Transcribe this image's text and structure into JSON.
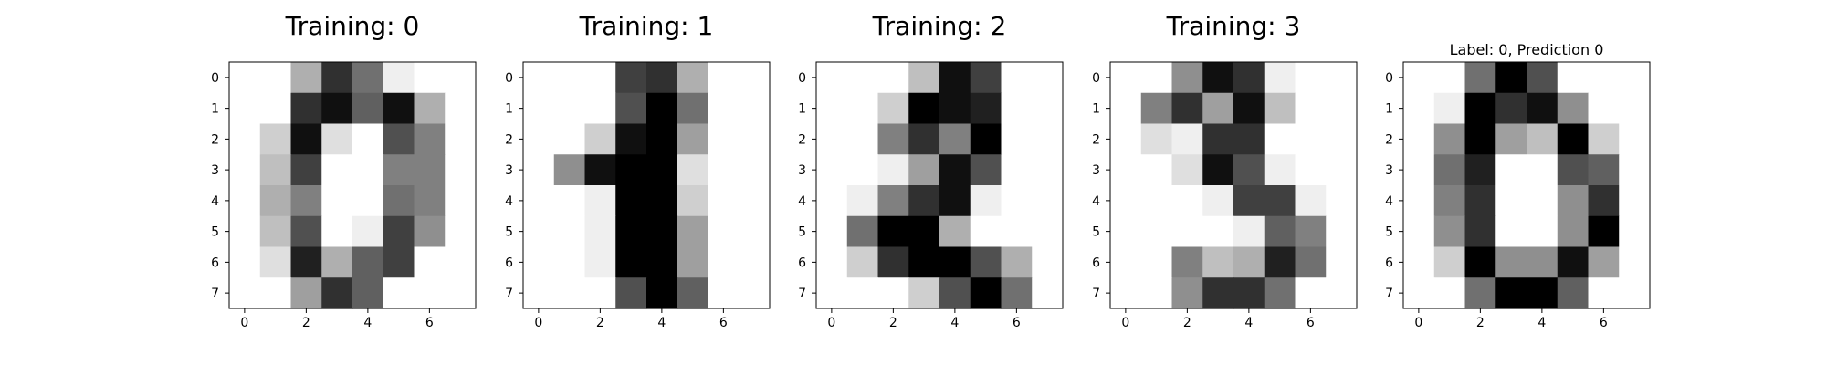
{
  "chart_data": [
    {
      "type": "heatmap",
      "title": "Training: 0",
      "title_size": "large",
      "colormap": "gray_r",
      "value_range": [
        0,
        16
      ],
      "x_ticks": [
        0,
        2,
        4,
        6
      ],
      "y_ticks": [
        0,
        1,
        2,
        3,
        4,
        5,
        6,
        7
      ],
      "values": [
        [
          0,
          0,
          5,
          13,
          9,
          1,
          0,
          0
        ],
        [
          0,
          0,
          13,
          15,
          10,
          15,
          5,
          0
        ],
        [
          0,
          3,
          15,
          2,
          0,
          11,
          8,
          0
        ],
        [
          0,
          4,
          12,
          0,
          0,
          8,
          8,
          0
        ],
        [
          0,
          5,
          8,
          0,
          0,
          9,
          8,
          0
        ],
        [
          0,
          4,
          11,
          0,
          1,
          12,
          7,
          0
        ],
        [
          0,
          2,
          14,
          5,
          10,
          12,
          0,
          0
        ],
        [
          0,
          0,
          6,
          13,
          10,
          0,
          0,
          0
        ]
      ]
    },
    {
      "type": "heatmap",
      "title": "Training: 1",
      "title_size": "large",
      "colormap": "gray_r",
      "value_range": [
        0,
        16
      ],
      "x_ticks": [
        0,
        2,
        4,
        6
      ],
      "y_ticks": [
        0,
        1,
        2,
        3,
        4,
        5,
        6,
        7
      ],
      "values": [
        [
          0,
          0,
          0,
          12,
          13,
          5,
          0,
          0
        ],
        [
          0,
          0,
          0,
          11,
          16,
          9,
          0,
          0
        ],
        [
          0,
          0,
          3,
          15,
          16,
          6,
          0,
          0
        ],
        [
          0,
          7,
          15,
          16,
          16,
          2,
          0,
          0
        ],
        [
          0,
          0,
          1,
          16,
          16,
          3,
          0,
          0
        ],
        [
          0,
          0,
          1,
          16,
          16,
          6,
          0,
          0
        ],
        [
          0,
          0,
          1,
          16,
          16,
          6,
          0,
          0
        ],
        [
          0,
          0,
          0,
          11,
          16,
          10,
          0,
          0
        ]
      ]
    },
    {
      "type": "heatmap",
      "title": "Training: 2",
      "title_size": "large",
      "colormap": "gray_r",
      "value_range": [
        0,
        16
      ],
      "x_ticks": [
        0,
        2,
        4,
        6
      ],
      "y_ticks": [
        0,
        1,
        2,
        3,
        4,
        5,
        6,
        7
      ],
      "values": [
        [
          0,
          0,
          0,
          4,
          15,
          12,
          0,
          0
        ],
        [
          0,
          0,
          3,
          16,
          15,
          14,
          0,
          0
        ],
        [
          0,
          0,
          8,
          13,
          8,
          16,
          0,
          0
        ],
        [
          0,
          0,
          1,
          6,
          15,
          11,
          0,
          0
        ],
        [
          0,
          1,
          8,
          13,
          15,
          1,
          0,
          0
        ],
        [
          0,
          9,
          16,
          16,
          5,
          0,
          0,
          0
        ],
        [
          0,
          3,
          13,
          16,
          16,
          11,
          5,
          0
        ],
        [
          0,
          0,
          0,
          3,
          11,
          16,
          9,
          0
        ]
      ]
    },
    {
      "type": "heatmap",
      "title": "Training: 3",
      "title_size": "large",
      "colormap": "gray_r",
      "value_range": [
        0,
        16
      ],
      "x_ticks": [
        0,
        2,
        4,
        6
      ],
      "y_ticks": [
        0,
        1,
        2,
        3,
        4,
        5,
        6,
        7
      ],
      "values": [
        [
          0,
          0,
          7,
          15,
          13,
          1,
          0,
          0
        ],
        [
          0,
          8,
          13,
          6,
          15,
          4,
          0,
          0
        ],
        [
          0,
          2,
          1,
          13,
          13,
          0,
          0,
          0
        ],
        [
          0,
          0,
          2,
          15,
          11,
          1,
          0,
          0
        ],
        [
          0,
          0,
          0,
          1,
          12,
          12,
          1,
          0
        ],
        [
          0,
          0,
          0,
          0,
          1,
          10,
          8,
          0
        ],
        [
          0,
          0,
          8,
          4,
          5,
          14,
          9,
          0
        ],
        [
          0,
          0,
          7,
          13,
          13,
          9,
          0,
          0
        ]
      ]
    },
    {
      "type": "heatmap",
      "title": "Label: 0, Prediction 0",
      "title_size": "small",
      "colormap": "gray_r",
      "value_range": [
        0,
        16
      ],
      "x_ticks": [
        0,
        2,
        4,
        6
      ],
      "y_ticks": [
        0,
        1,
        2,
        3,
        4,
        5,
        6,
        7
      ],
      "values": [
        [
          0,
          0,
          9,
          16,
          11,
          0,
          0,
          0
        ],
        [
          0,
          1,
          16,
          13,
          15,
          7,
          0,
          0
        ],
        [
          0,
          7,
          16,
          6,
          4,
          16,
          3,
          0
        ],
        [
          0,
          9,
          14,
          0,
          0,
          11,
          10,
          0
        ],
        [
          0,
          8,
          13,
          0,
          0,
          7,
          13,
          0
        ],
        [
          0,
          7,
          13,
          0,
          0,
          7,
          16,
          0
        ],
        [
          0,
          3,
          16,
          7,
          7,
          15,
          6,
          0
        ],
        [
          0,
          0,
          9,
          16,
          16,
          10,
          0,
          0
        ]
      ]
    }
  ]
}
